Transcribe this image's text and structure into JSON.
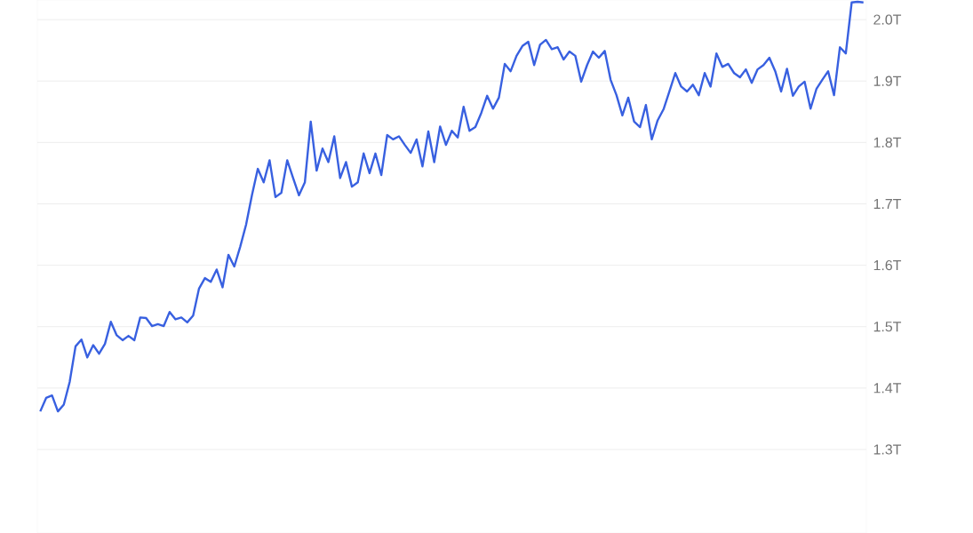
{
  "chart_data": {
    "type": "line",
    "categories": [
      null,
      null,
      null,
      null,
      null,
      null,
      null,
      null,
      null,
      null,
      null,
      null,
      null,
      null,
      null,
      null,
      null,
      null,
      null,
      null,
      null,
      null,
      null,
      null,
      null,
      null,
      null,
      null,
      null,
      null,
      null,
      null,
      null,
      null,
      null,
      null,
      null,
      null,
      null,
      null,
      null,
      null,
      null,
      null,
      null,
      null,
      null,
      null,
      null,
      null,
      null,
      null,
      null,
      null,
      null,
      null,
      null,
      null,
      null,
      null,
      null,
      null,
      null,
      null,
      null,
      null,
      null,
      null,
      null,
      null,
      null,
      null,
      null,
      null,
      null,
      null,
      null,
      null,
      null,
      null,
      null,
      null,
      null,
      null,
      null,
      null,
      null,
      null,
      null,
      null,
      null,
      null,
      null,
      null,
      null,
      null,
      null,
      null,
      null,
      null,
      null,
      null,
      null,
      null,
      null,
      null,
      null,
      null,
      null,
      null,
      null,
      null,
      null,
      null,
      null,
      null,
      null,
      null,
      null,
      null,
      null,
      null,
      null,
      null,
      null,
      null,
      null,
      null,
      null,
      null,
      null,
      null,
      null,
      null,
      null,
      null,
      null,
      null,
      null,
      null,
      null
    ],
    "series": [
      {
        "color": "#3860e0",
        "values": [
          1.362,
          1.384,
          1.388,
          1.362,
          1.373,
          1.41,
          1.468,
          1.479,
          1.45,
          1.47,
          1.456,
          1.472,
          1.508,
          1.486,
          1.478,
          1.485,
          1.478,
          1.515,
          1.514,
          1.501,
          1.504,
          1.501,
          1.524,
          1.512,
          1.515,
          1.507,
          1.518,
          1.562,
          1.579,
          1.573,
          1.593,
          1.564,
          1.617,
          1.598,
          1.63,
          1.666,
          1.714,
          1.757,
          1.735,
          1.771,
          1.711,
          1.718,
          1.771,
          1.742,
          1.714,
          1.735,
          1.834,
          1.754,
          1.79,
          1.768,
          1.81,
          1.742,
          1.768,
          1.728,
          1.735,
          1.782,
          1.75,
          1.782,
          1.747,
          1.812,
          1.805,
          1.81,
          1.796,
          1.783,
          1.805,
          1.761,
          1.818,
          1.768,
          1.826,
          1.796,
          1.819,
          1.808,
          1.858,
          1.819,
          1.825,
          1.848,
          1.876,
          1.855,
          1.873,
          1.928,
          1.916,
          1.941,
          1.957,
          1.964,
          1.926,
          1.959,
          1.967,
          1.952,
          1.955,
          1.935,
          1.948,
          1.941,
          1.899,
          1.926,
          1.948,
          1.938,
          1.949,
          1.902,
          1.877,
          1.844,
          1.873,
          1.834,
          1.825,
          1.861,
          1.805,
          1.836,
          1.854,
          1.883,
          1.913,
          1.891,
          1.883,
          1.894,
          1.877,
          1.913,
          1.891,
          1.945,
          1.923,
          1.928,
          1.913,
          1.906,
          1.919,
          1.897,
          1.919,
          1.926,
          1.938,
          1.916,
          1.883,
          1.92,
          1.876,
          1.891,
          1.899,
          1.855,
          1.887,
          1.902,
          1.916,
          1.877,
          1.955,
          1.945,
          2.028,
          2.029,
          2.028
        ]
      }
    ],
    "ylim": [
      1.164,
      2.032
    ],
    "yticks": [
      {
        "value": 1.3,
        "label": "1.3T"
      },
      {
        "value": 1.4,
        "label": "1.4T"
      },
      {
        "value": 1.5,
        "label": "1.5T"
      },
      {
        "value": 1.6,
        "label": "1.6T"
      },
      {
        "value": 1.7,
        "label": "1.7T"
      },
      {
        "value": 1.8,
        "label": "1.8T"
      },
      {
        "value": 1.9,
        "label": "1.9T"
      },
      {
        "value": 2.0,
        "label": "2.0T"
      }
    ],
    "grid": "y"
  }
}
